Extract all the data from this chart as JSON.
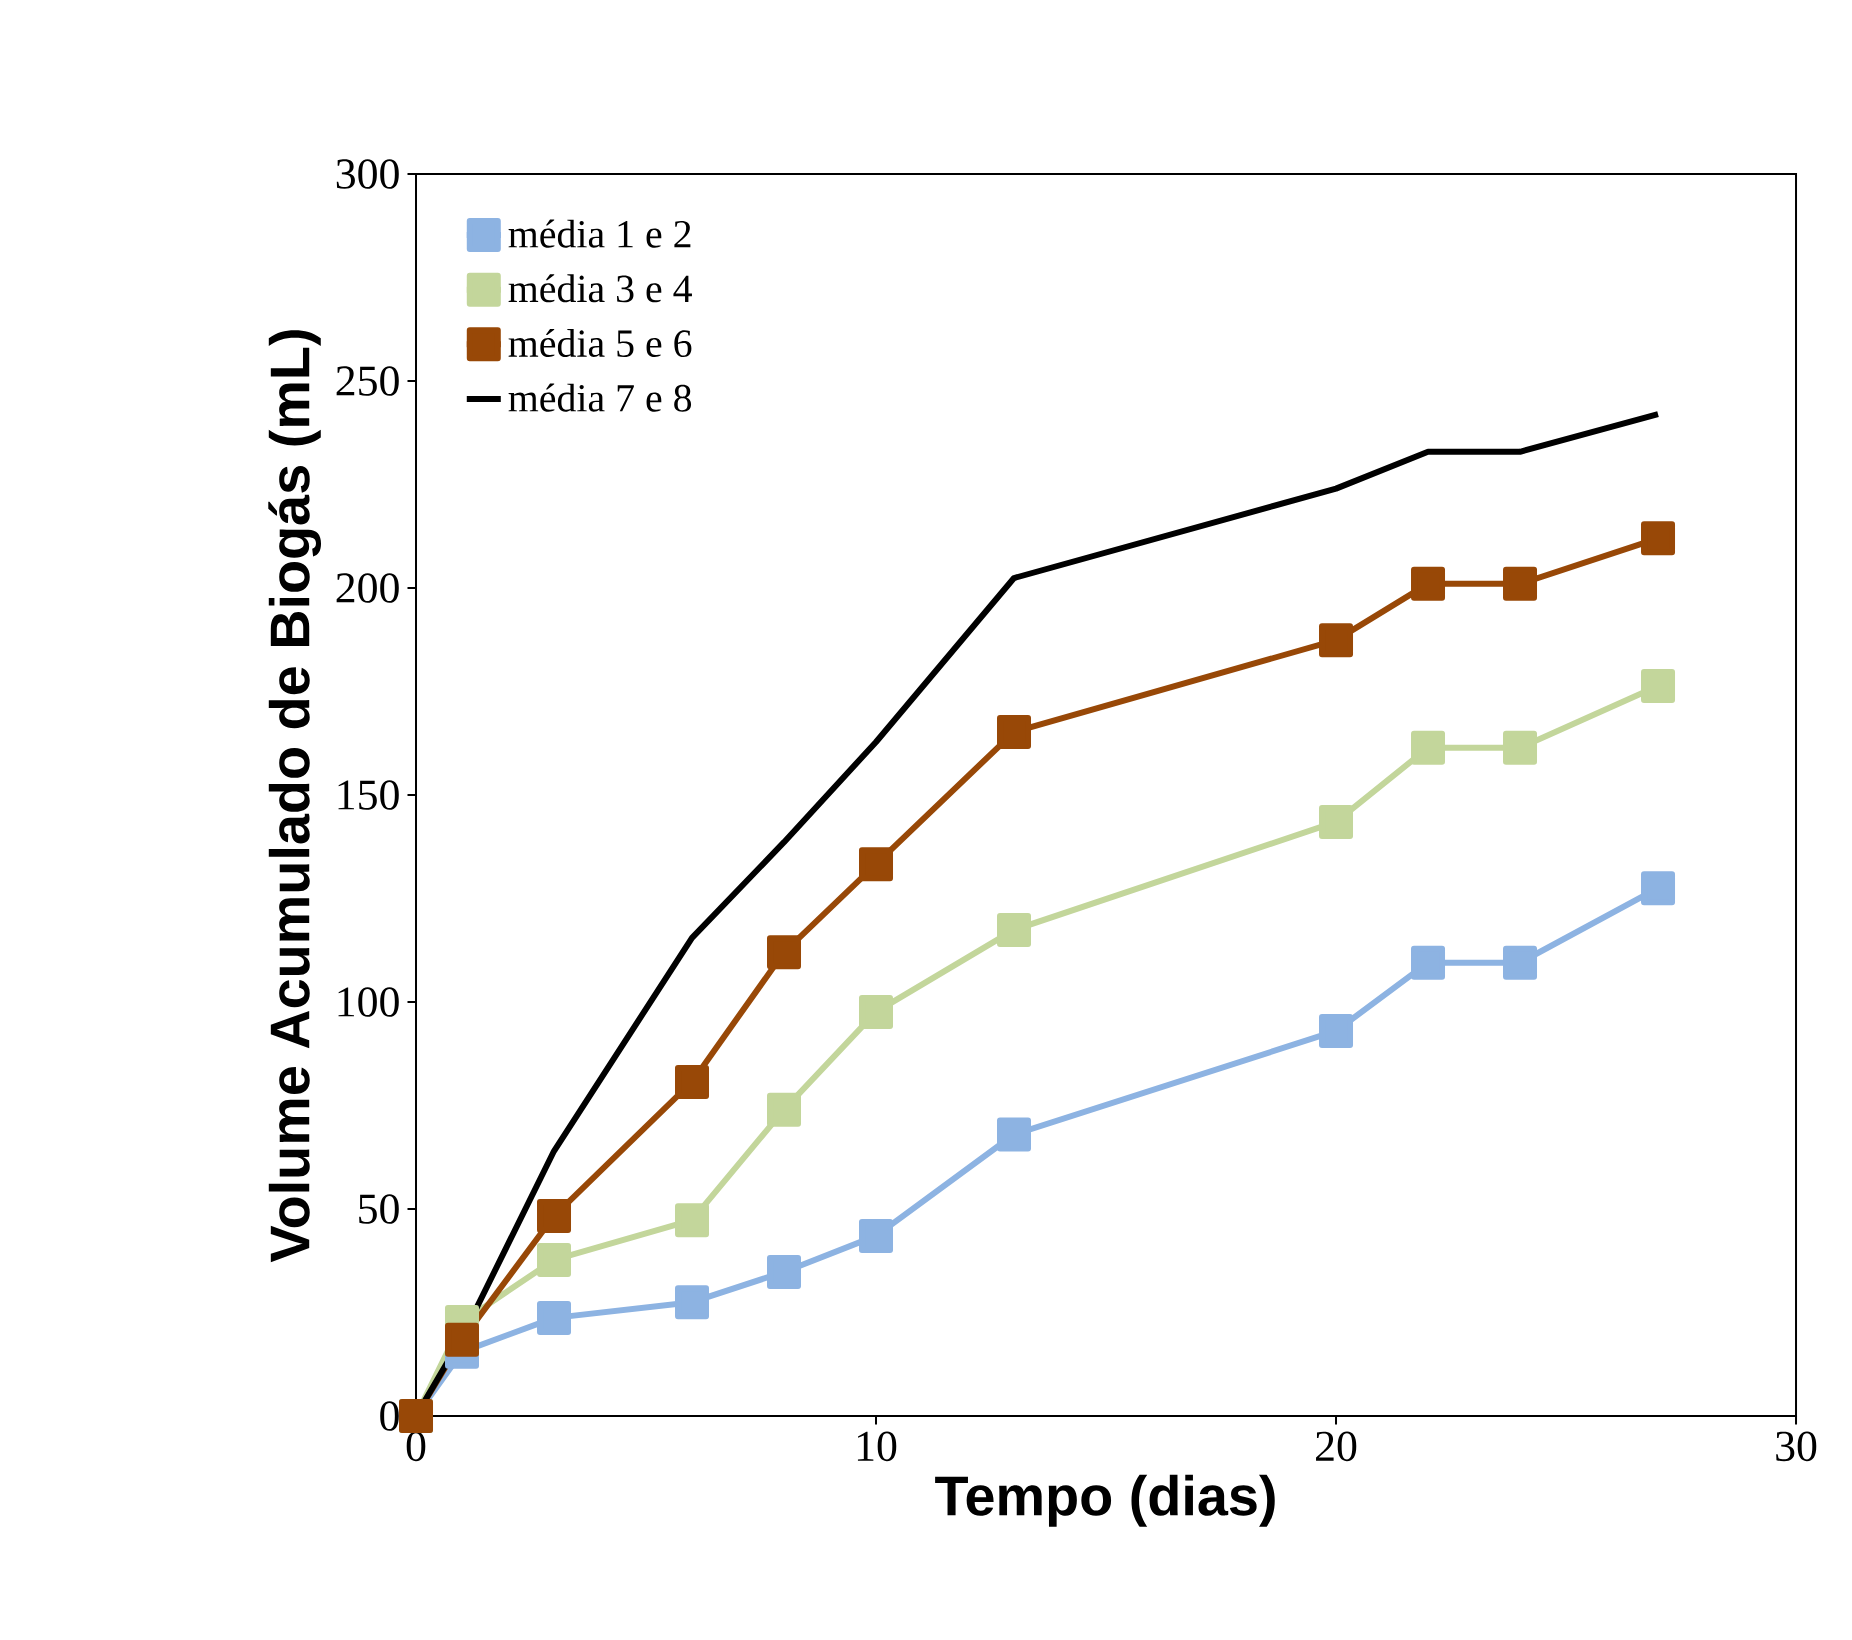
{
  "chart_data": {
    "type": "line",
    "xlabel": "Tempo (dias)",
    "ylabel": "Volume Acumulado de Biogás (mL)",
    "x": [
      0,
      1,
      3,
      6,
      8,
      10,
      13,
      20,
      22,
      24,
      27
    ],
    "series": [
      {
        "name": "média 1 e 2",
        "color": "#8db3e2",
        "marker": "square",
        "values": [
          0,
          15.5,
          23.7,
          27.5,
          34.8,
          43.5,
          68,
          93,
          109.5,
          109.5,
          127.5
        ]
      },
      {
        "name": "média 3 e 4",
        "color": "#c3d69b",
        "marker": "square",
        "values": [
          0,
          22.7,
          37.7,
          47.3,
          74,
          97.6,
          117.4,
          143.5,
          161.4,
          161.4,
          176.3
        ]
      },
      {
        "name": "média 5 e 6",
        "color": "#984807",
        "marker": "square",
        "values": [
          0,
          18.4,
          48.3,
          80.7,
          112,
          133.3,
          165.2,
          187.4,
          201,
          201,
          212
        ]
      },
      {
        "name": "média 7 e 8",
        "color": "#000000",
        "marker": "none",
        "values": [
          0,
          19,
          64,
          115.5,
          138.6,
          162.8,
          202.4,
          224,
          232.9,
          232.9,
          242
        ]
      }
    ],
    "xlim": [
      0,
      30
    ],
    "xticks": [
      0,
      10,
      20,
      30
    ],
    "ylim": [
      0,
      300
    ],
    "yticks": [
      0,
      50,
      100,
      150,
      200,
      250,
      300
    ],
    "legend": "top left",
    "grid": false,
    "line_style": "solid"
  }
}
